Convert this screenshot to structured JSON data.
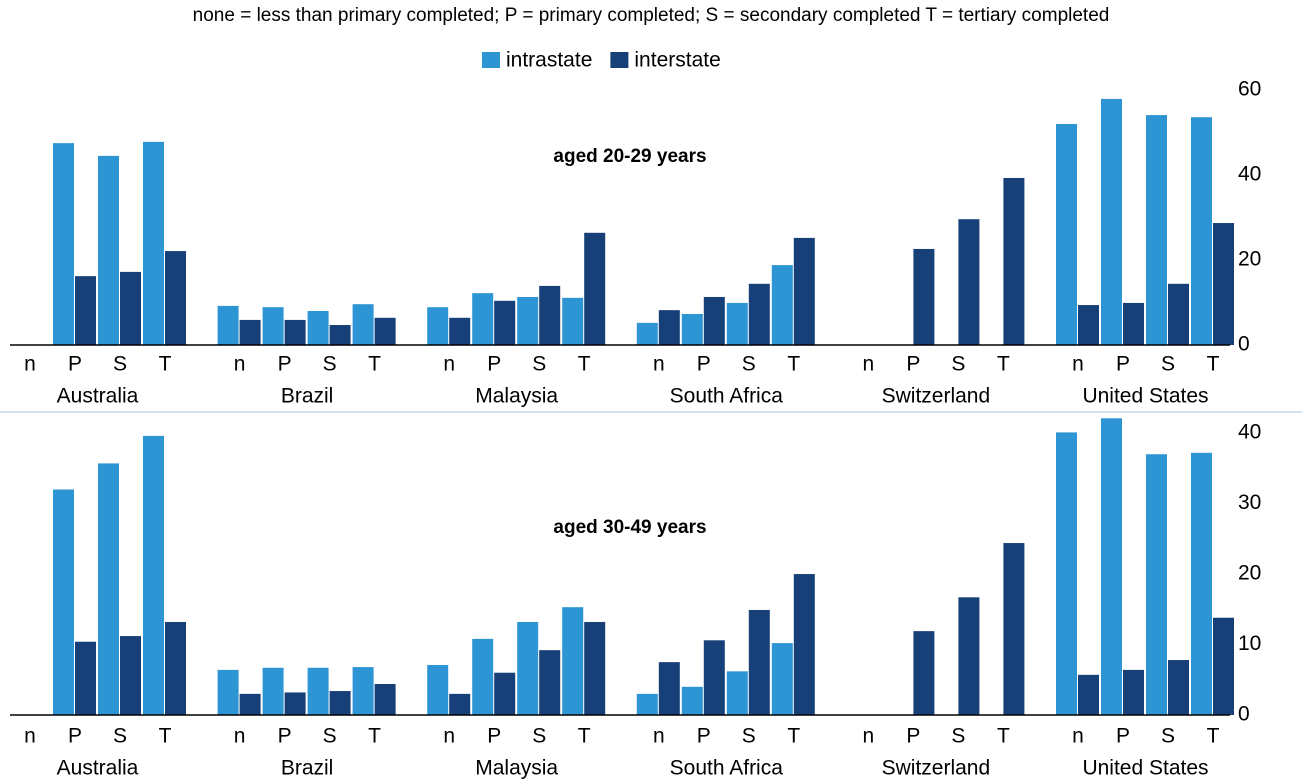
{
  "chart_data": [
    {
      "type": "bar",
      "subtitle": "none = less than primary completed; P = primary completed; S = secondary completed T = tertiary completed",
      "title": "aged 20-29 years",
      "groups": [
        "Australia",
        "Brazil",
        "Malaysia",
        "South Africa",
        "Switzerland",
        "United States"
      ],
      "categories": [
        "n",
        "P",
        "S",
        "T",
        "n",
        "P",
        "S",
        "T",
        "n",
        "P",
        "S",
        "T",
        "n",
        "P",
        "S",
        "T",
        "n",
        "P",
        "S",
        "T",
        "n",
        "P",
        "S",
        "T"
      ],
      "series": [
        {
          "name": "intrastate",
          "color": "#2e95d5",
          "values": [
            null,
            47.5,
            44.5,
            47.8,
            9.2,
            8.9,
            8.0,
            9.6,
            8.9,
            12.2,
            11.3,
            11.1,
            5.2,
            7.3,
            9.9,
            18.8,
            null,
            null,
            null,
            null,
            52,
            57.9,
            54.1,
            53.6
          ]
        },
        {
          "name": "interstate",
          "color": "#173f78",
          "values": [
            null,
            16.2,
            17.2,
            22.1,
            5.9,
            5.9,
            4.7,
            6.4,
            6.4,
            10.4,
            13.9,
            26.4,
            8.2,
            11.3,
            14.4,
            25.2,
            null,
            22.6,
            29.6,
            39.3,
            9.4,
            9.9,
            14.4,
            28.7
          ]
        }
      ],
      "ylim": [
        0,
        60
      ],
      "yticks": [
        0,
        20,
        40,
        60
      ],
      "legend": "top",
      "grid": false
    },
    {
      "type": "bar",
      "title": "aged 30-49 years",
      "groups": [
        "Australia",
        "Brazil",
        "Malaysia",
        "South Africa",
        "Switzerland",
        "United States"
      ],
      "categories": [
        "n",
        "P",
        "S",
        "T",
        "n",
        "P",
        "S",
        "T",
        "n",
        "P",
        "S",
        "T",
        "n",
        "P",
        "S",
        "T",
        "n",
        "P",
        "S",
        "T",
        "n",
        "P",
        "S",
        "T"
      ],
      "series": [
        {
          "color": "#2e95d5",
          "values": [
            null,
            32,
            35.7,
            39.6,
            6.4,
            6.7,
            6.7,
            6.8,
            7.1,
            10.8,
            13.2,
            15.3,
            3,
            4,
            6.2,
            10.2,
            null,
            null,
            null,
            null,
            40.1,
            42.1,
            37,
            37.2
          ]
        },
        {
          "color": "#173f78",
          "values": [
            null,
            10.4,
            11.2,
            13.2,
            3,
            3.2,
            3.4,
            4.4,
            3,
            6,
            9.2,
            13.2,
            7.5,
            10.6,
            14.9,
            20,
            null,
            11.9,
            16.7,
            24.4,
            5.7,
            6.4,
            7.8,
            13.8
          ]
        }
      ],
      "ylim": [
        0,
        42
      ],
      "yticks": [
        0,
        10,
        20,
        30,
        40
      ],
      "grid": false
    }
  ]
}
